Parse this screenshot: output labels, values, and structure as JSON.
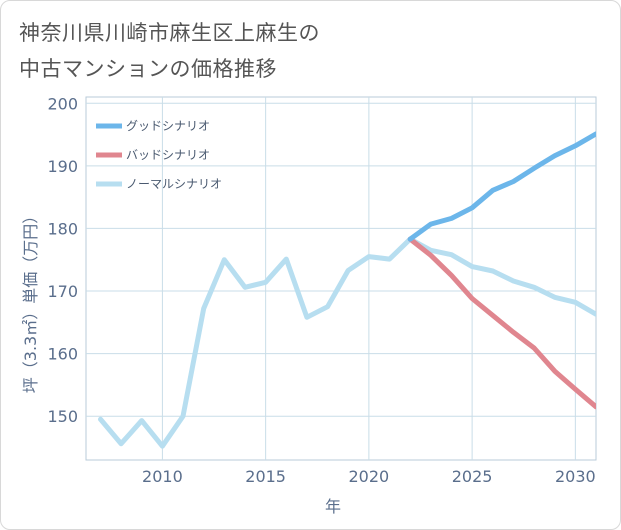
{
  "title_lines": [
    "神奈川県川崎市麻生区上麻生の",
    "中古マンションの価格推移"
  ],
  "chart_data": {
    "type": "line",
    "title": "神奈川県川崎市麻生区上麻生の中古マンションの価格推移",
    "xlabel": "年",
    "ylabel": "坪（3.3㎡）単価（万円）",
    "xlim": [
      2006.3,
      2031
    ],
    "ylim": [
      143,
      201
    ],
    "xticks": [
      2010,
      2015,
      2020,
      2025,
      2030
    ],
    "yticks": [
      150,
      160,
      170,
      180,
      190,
      200
    ],
    "legend_position": "top-left",
    "series": [
      {
        "name": "グッドシナリオ",
        "color": "#6cb6ea",
        "x": [
          2022,
          2023,
          2024,
          2025,
          2026,
          2027,
          2028,
          2029,
          2030,
          2031
        ],
        "y": [
          178.3,
          180.7,
          181.6,
          183.3,
          186.1,
          187.5,
          189.6,
          191.6,
          193.2,
          195.1
        ]
      },
      {
        "name": "バッドシナリオ",
        "color": "#e0868f",
        "x": [
          2022,
          2023,
          2024,
          2025,
          2026,
          2027,
          2028,
          2029,
          2030,
          2031
        ],
        "y": [
          178.3,
          175.7,
          172.5,
          168.8,
          166.1,
          163.4,
          160.9,
          157.2,
          154.3,
          151.5
        ]
      },
      {
        "name": "ノーマルシナリオ",
        "color": "#b7def0",
        "x": [
          2007,
          2008,
          2009,
          2010,
          2011,
          2012,
          2013,
          2014,
          2015,
          2016,
          2017,
          2018,
          2019,
          2020,
          2021,
          2022,
          2023,
          2024,
          2025,
          2026,
          2027,
          2028,
          2029,
          2030,
          2031
        ],
        "y": [
          149.5,
          145.6,
          149.3,
          145.2,
          150.0,
          167.2,
          175.0,
          170.6,
          171.4,
          175.1,
          165.8,
          167.5,
          173.3,
          175.5,
          175.1,
          178.3,
          176.5,
          175.8,
          173.9,
          173.2,
          171.6,
          170.6,
          169.0,
          168.2,
          166.3
        ]
      }
    ]
  }
}
